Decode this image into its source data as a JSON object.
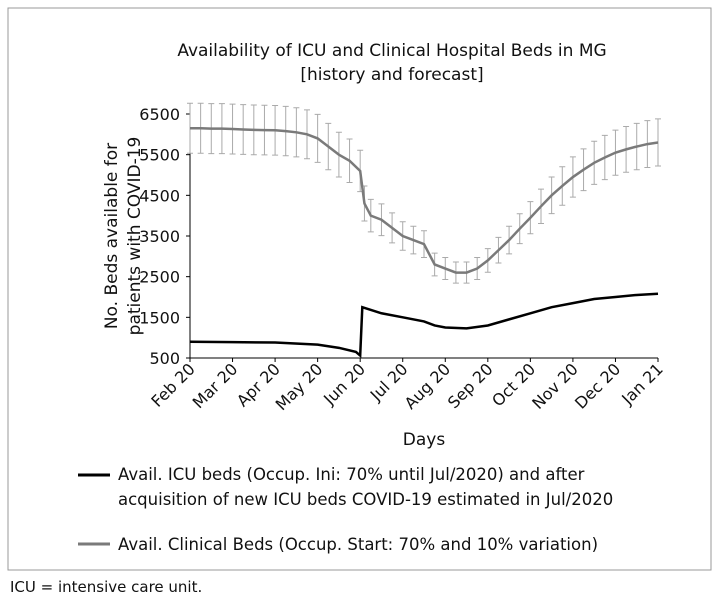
{
  "chart_data": {
    "type": "line",
    "title": "Availability of ICU and Clinical Hospital Beds in MG",
    "subtitle": "[history and forecast]",
    "x_label": "Days",
    "y_label": [
      "No. Beds available for",
      "patients with COVID-19"
    ],
    "xlim": [
      0,
      11
    ],
    "xticks": [
      {
        "value": 0,
        "label": "Feb 20"
      },
      {
        "value": 1,
        "label": "Mar 20"
      },
      {
        "value": 2,
        "label": "Apr 20"
      },
      {
        "value": 3,
        "label": "May 20"
      },
      {
        "value": 4,
        "label": "Jun 20"
      },
      {
        "value": 5,
        "label": "Jul 20"
      },
      {
        "value": 6,
        "label": "Aug 20"
      },
      {
        "value": 7,
        "label": "Sep 20"
      },
      {
        "value": 8,
        "label": "Oct 20"
      },
      {
        "value": 9,
        "label": "Nov 20"
      },
      {
        "value": 10,
        "label": "Dec 20"
      },
      {
        "value": 11,
        "label": "Jan 21"
      }
    ],
    "ylim": [
      500,
      6500
    ],
    "yticks": [
      500,
      1500,
      2500,
      3500,
      4500,
      5500,
      6500
    ],
    "series": [
      {
        "name": "Avail. ICU beds (Occup. Ini: 70% until Jul/2020) and after acquisition of new ICU beds COVID-19 estimated in Jul/2020",
        "color": "#000000",
        "x": [
          0,
          1,
          2,
          3,
          3.5,
          3.9,
          4,
          4.05,
          4.5,
          5,
          5.5,
          5.75,
          6,
          6.5,
          7,
          7.5,
          8,
          8.5,
          9,
          9.5,
          10,
          10.5,
          11
        ],
        "values": [
          900,
          890,
          880,
          830,
          750,
          650,
          560,
          1750,
          1600,
          1500,
          1400,
          1300,
          1250,
          1230,
          1300,
          1450,
          1600,
          1750,
          1850,
          1950,
          2000,
          2050,
          2080
        ]
      },
      {
        "name": "Avail. Clinical Beds (Occup. Start: 70% and 10% variation)",
        "color": "#7a7a7a",
        "error_color": "#aaaaaa",
        "x": [
          0,
          0.25,
          0.5,
          0.75,
          1,
          1.25,
          1.5,
          1.75,
          2,
          2.25,
          2.5,
          2.75,
          3,
          3.25,
          3.5,
          3.75,
          4,
          4.1,
          4.25,
          4.5,
          4.75,
          5,
          5.25,
          5.5,
          5.75,
          6,
          6.25,
          6.5,
          6.75,
          7,
          7.25,
          7.5,
          7.75,
          8,
          8.25,
          8.5,
          8.75,
          9,
          9.25,
          9.5,
          9.75,
          10,
          10.25,
          10.5,
          10.75,
          11
        ],
        "values": [
          6150,
          6150,
          6140,
          6140,
          6130,
          6120,
          6110,
          6105,
          6100,
          6080,
          6050,
          6000,
          5900,
          5700,
          5500,
          5350,
          5100,
          4300,
          4000,
          3900,
          3700,
          3500,
          3400,
          3300,
          2800,
          2700,
          2600,
          2600,
          2700,
          2900,
          3150,
          3400,
          3680,
          3950,
          4230,
          4500,
          4730,
          4950,
          5130,
          5300,
          5430,
          5550,
          5630,
          5700,
          5760,
          5800
        ],
        "errors": [
          615,
          615,
          614,
          614,
          613,
          612,
          611,
          611,
          610,
          608,
          605,
          600,
          590,
          570,
          550,
          535,
          510,
          430,
          400,
          390,
          370,
          350,
          340,
          330,
          280,
          270,
          260,
          260,
          270,
          290,
          315,
          340,
          368,
          395,
          423,
          450,
          473,
          495,
          513,
          530,
          543,
          555,
          563,
          570,
          576,
          580
        ]
      }
    ]
  },
  "footnote": "ICU = intensive care unit."
}
